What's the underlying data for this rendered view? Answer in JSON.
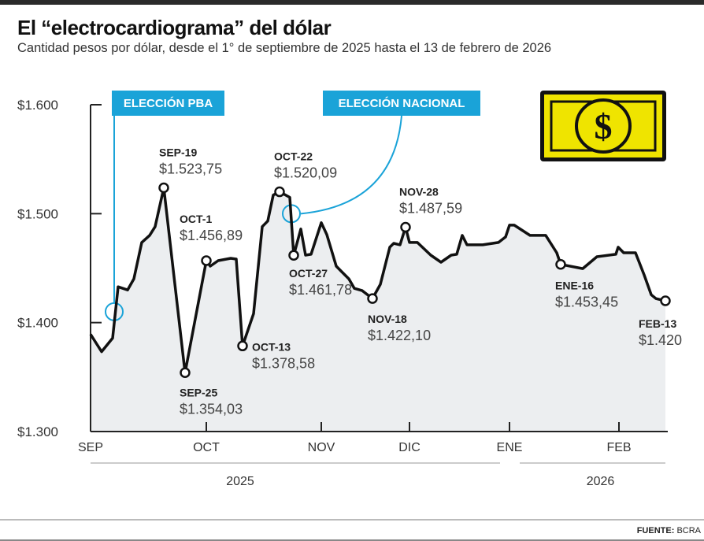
{
  "header": {
    "title": "El “electrocardiograma” del dólar",
    "subtitle": "Cantidad pesos por dólar, desde el 1° de septiembre de 2025 hasta el 13 de febrero de 2026"
  },
  "footer": {
    "source_label": "FUENTE:",
    "source_value": "BCRA"
  },
  "colors": {
    "line": "#111111",
    "fill": "#eceef0",
    "accent": "#1aa3d8",
    "bill": "#efe400"
  },
  "icon": "dollar-bill-icon",
  "chart_data": {
    "type": "line",
    "title": "El “electrocardiograma” del dólar",
    "ylabel": "Pesos por dólar",
    "ylim": [
      1300,
      1600
    ],
    "yticks": [
      {
        "value": 1300,
        "label": "$1.300"
      },
      {
        "value": 1400,
        "label": "$1.400"
      },
      {
        "value": 1500,
        "label": "$1.500"
      },
      {
        "value": 1600,
        "label": "$1.600"
      }
    ],
    "x_unit": "approx. chart day index from Sep 1, 2025",
    "xlim": [
      0,
      146
    ],
    "xticks": [
      {
        "x": 0,
        "label": "SEP"
      },
      {
        "x": 29.4,
        "label": "OCT"
      },
      {
        "x": 58.6,
        "label": "NOV"
      },
      {
        "x": 81,
        "label": "DIC"
      },
      {
        "x": 106.4,
        "label": "ENE"
      },
      {
        "x": 134.2,
        "label": "FEB"
      }
    ],
    "years": [
      {
        "label": "2025",
        "from": 0,
        "to": 104
      },
      {
        "label": "2026",
        "from": 109,
        "to": 146
      }
    ],
    "grid": false,
    "series": [
      {
        "name": "Pesos por dólar",
        "points": [
          [
            0,
            1389.3
          ],
          [
            2.8,
            1373.3
          ],
          [
            5.6,
            1385.7
          ],
          [
            7,
            1432.9
          ],
          [
            9.4,
            1430
          ],
          [
            11,
            1440.2
          ],
          [
            13,
            1473.6
          ],
          [
            15,
            1480.1
          ],
          [
            16.4,
            1488.1
          ],
          [
            18.6,
            1523.75
          ],
          [
            24,
            1354.03
          ],
          [
            29.4,
            1456.89
          ],
          [
            30.4,
            1451.8
          ],
          [
            32.4,
            1456.9
          ],
          [
            35.6,
            1459
          ],
          [
            37,
            1458.3
          ],
          [
            38.6,
            1378.58
          ],
          [
            41.4,
            1408.2
          ],
          [
            43.6,
            1488.1
          ],
          [
            45,
            1493.2
          ],
          [
            46.4,
            1517.1
          ],
          [
            48,
            1520.09
          ],
          [
            50.6,
            1515
          ],
          [
            51.6,
            1461.78
          ],
          [
            53.4,
            1485.9
          ],
          [
            54.6,
            1461.9
          ],
          [
            56,
            1462.7
          ],
          [
            58.6,
            1491.7
          ],
          [
            60,
            1480.8
          ],
          [
            62.4,
            1451.8
          ],
          [
            63.6,
            1447.4
          ],
          [
            65.6,
            1440.2
          ],
          [
            67,
            1431.4
          ],
          [
            69,
            1429.3
          ],
          [
            71.6,
            1422.1
          ],
          [
            73.6,
            1435.1
          ],
          [
            76,
            1469.2
          ],
          [
            77,
            1472.8
          ],
          [
            78.6,
            1471.4
          ],
          [
            80,
            1487.59
          ],
          [
            81,
            1473.6
          ],
          [
            83,
            1473.6
          ],
          [
            86.4,
            1461.9
          ],
          [
            89,
            1455.4
          ],
          [
            91.6,
            1461.9
          ],
          [
            93,
            1462.7
          ],
          [
            94.4,
            1480.1
          ],
          [
            95.6,
            1471.4
          ],
          [
            99.6,
            1471.4
          ],
          [
            103.6,
            1473.6
          ],
          [
            105.4,
            1478.6
          ],
          [
            106.4,
            1489.5
          ],
          [
            107.6,
            1489.5
          ],
          [
            111.6,
            1480.1
          ],
          [
            115.6,
            1480.1
          ],
          [
            118.4,
            1464.1
          ],
          [
            119.4,
            1453.45
          ],
          [
            125,
            1449.6
          ],
          [
            128.6,
            1460.5
          ],
          [
            133.4,
            1462.7
          ],
          [
            134,
            1469.2
          ],
          [
            135.4,
            1464.1
          ],
          [
            138.4,
            1464.1
          ],
          [
            140.6,
            1443.8
          ],
          [
            142.4,
            1425.6
          ],
          [
            143.6,
            1422
          ],
          [
            146,
            1420
          ]
        ]
      }
    ],
    "annotations": [
      {
        "x": 18.6,
        "value": 1523.75,
        "date": "SEP-19",
        "label": "$1.523,75"
      },
      {
        "x": 24,
        "value": 1354.03,
        "date": "SEP-25",
        "label": "$1.354,03"
      },
      {
        "x": 29.4,
        "value": 1456.89,
        "date": "OCT-1",
        "label": "$1.456,89"
      },
      {
        "x": 38.6,
        "value": 1378.58,
        "date": "OCT-13",
        "label": "$1.378,58"
      },
      {
        "x": 48,
        "value": 1520.09,
        "date": "OCT-22",
        "label": "$1.520,09"
      },
      {
        "x": 51.6,
        "value": 1461.78,
        "date": "OCT-27",
        "label": "$1.461,78"
      },
      {
        "x": 71.6,
        "value": 1422.1,
        "date": "NOV-18",
        "label": "$1.422,10"
      },
      {
        "x": 80,
        "value": 1487.59,
        "date": "NOV-28",
        "label": "$1.487,59"
      },
      {
        "x": 119.4,
        "value": 1453.45,
        "date": "ENE-16",
        "label": "$1.453,45"
      },
      {
        "x": 146,
        "value": 1420,
        "date": "FEB-13",
        "label": "$1.420"
      }
    ],
    "events": [
      {
        "label": "ELECCIÓN PBA",
        "x": 6,
        "value": 1410
      },
      {
        "label": "ELECCIÓN NACIONAL",
        "x": 51,
        "value": 1500
      }
    ]
  }
}
